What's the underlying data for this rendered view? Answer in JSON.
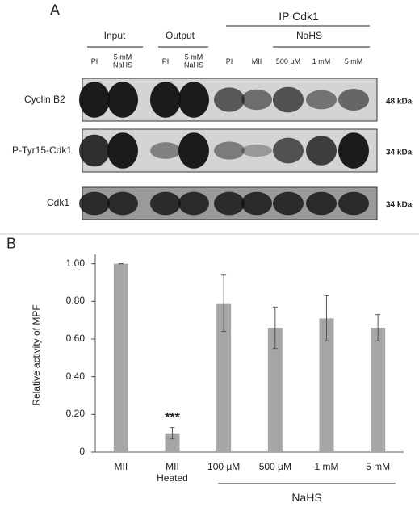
{
  "panel_a": {
    "label": "A",
    "ip": "IP Cdk1",
    "input": "Input",
    "output": "Output",
    "nahs": "NaHS",
    "lanes": [
      "PI",
      "5 mM NaHS",
      "PI",
      "5 mM NaHS",
      "PI",
      "MII",
      "500 µM",
      "1 mM",
      "5 mM"
    ],
    "rows": [
      {
        "name": "Cyclin B2",
        "kda": "48 kDa"
      },
      {
        "name": "P-Tyr15-Cdk1",
        "kda": "34 kDa"
      },
      {
        "name": "Cdk1",
        "kda": "34 kDa"
      }
    ]
  },
  "panel_b": {
    "label": "B"
  },
  "chart_data": {
    "type": "bar",
    "y_label": "Relative activity of MPF",
    "categories": [
      "MII",
      "MII Heated",
      "100 µM",
      "500 µM",
      "1 mM",
      "5 mM"
    ],
    "values": [
      1.0,
      0.1,
      0.79,
      0.66,
      0.71,
      0.66
    ],
    "errors": [
      0,
      0.03,
      0.15,
      0.11,
      0.12,
      0.07
    ],
    "color": "#a6a6a6",
    "annotation": "***",
    "group_label": "NaHS",
    "ylim": [
      0,
      1.05
    ],
    "yticks": [
      0,
      {
        "value": 0.2,
        "label": "0.20"
      },
      {
        "value": 0.4,
        "label": "0.40"
      },
      {
        "value": 0.6,
        "label": "0.60"
      },
      {
        "value": 0.8,
        "label": "0.80"
      },
      {
        "value": 1,
        "label": "1.00"
      }
    ]
  }
}
